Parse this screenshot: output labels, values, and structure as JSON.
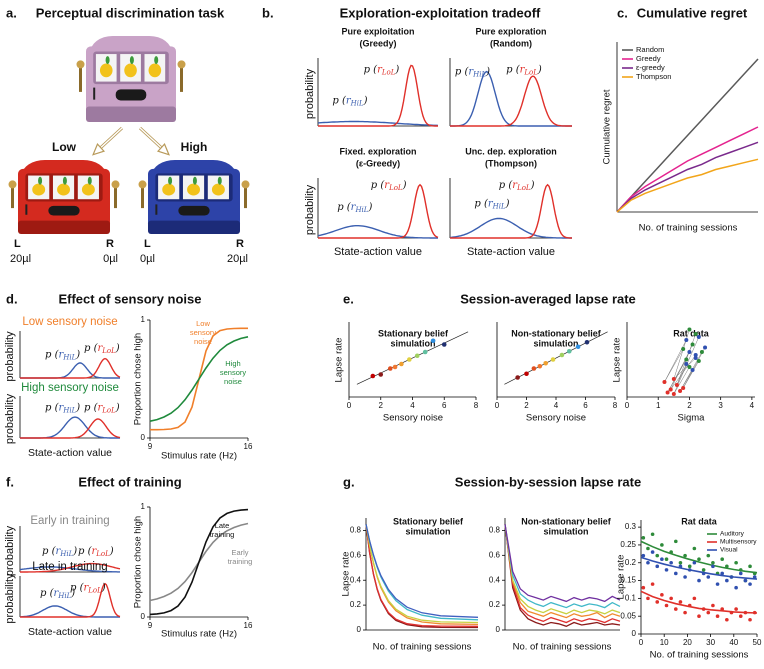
{
  "panels": {
    "a": {
      "label": "a.",
      "title": "Perceptual discrimination task",
      "machines": [
        {
          "name": "Low",
          "left": "L",
          "right": "R",
          "left_reward": "20µl",
          "right_reward": "0µl"
        },
        {
          "name": "High",
          "left": "L",
          "right": "R",
          "left_reward": "0µl",
          "right_reward": "20µl"
        }
      ]
    },
    "b": {
      "label": "b.",
      "title": "Exploration-exploitation tradeoff",
      "y_label": "probability",
      "x_label": "State-action value",
      "subplots": [
        [
          "Pure exploitation",
          "(Greedy)"
        ],
        [
          "Pure exploration",
          "(Random)"
        ],
        [
          "Fixed. exploration",
          "(ε-Greedy)"
        ],
        [
          "Unc. dep. exploration",
          "(Thompson)"
        ]
      ]
    },
    "c": {
      "label": "c."
    },
    "d": {
      "label": "d.",
      "title": "Effect of sensory noise",
      "conditions": [
        "Low sensory noise",
        "High sensory noise"
      ],
      "y_label": "probability",
      "x_label": "State-action value"
    },
    "e": {
      "label": "e.",
      "title": "Session-averaged lapse rate"
    },
    "f": {
      "label": "f.",
      "title": "Effect of training",
      "conditions": [
        "Early in training",
        "Late in training"
      ],
      "y_label": "probability",
      "x_label": "State-action value"
    },
    "g": {
      "label": "g.",
      "title": "Session-by-session lapse rate"
    }
  },
  "symbols": {
    "hil": {
      "open": "p (",
      "var": "r",
      "sub": "HiL",
      "close": ")"
    },
    "lol": {
      "open": "p (",
      "var": "r",
      "sub": "LoL",
      "close": ")"
    }
  },
  "chart_data": [
    {
      "type": "line",
      "title": "Cumulative regret",
      "x_label": "No. of training sessions",
      "y_label": "Cumulative regret",
      "x": [
        0,
        1,
        2,
        3,
        4,
        5,
        6,
        7,
        8,
        9,
        10
      ],
      "xlim": [
        0,
        10
      ],
      "ylim": [
        0,
        10
      ],
      "legend": "upper left",
      "series": [
        {
          "name": "Random",
          "color": "#5a5a5a",
          "values": [
            0,
            0.9,
            1.8,
            2.7,
            3.6,
            4.5,
            5.4,
            6.3,
            7.2,
            8.1,
            9
          ]
        },
        {
          "name": "Greedy",
          "color": "#e4238f",
          "values": [
            0,
            0.9,
            1.5,
            2,
            2.5,
            3,
            3.4,
            3.8,
            4.2,
            4.6,
            5
          ]
        },
        {
          "name": "ε-greedy",
          "color": "#7a2a8c",
          "values": [
            0,
            0.8,
            1.3,
            1.7,
            2.1,
            2.5,
            2.8,
            3.2,
            3.5,
            3.8,
            4.1
          ]
        },
        {
          "name": "Thompson",
          "color": "#f2a51a",
          "values": [
            0,
            0.7,
            1.1,
            1.4,
            1.7,
            2,
            2.2,
            2.5,
            2.7,
            2.9,
            3.1
          ]
        }
      ]
    },
    {
      "type": "line",
      "x_label": "Stimulus rate (Hz)",
      "y_label": "Proportion chose high",
      "x": [
        9,
        9.5,
        10,
        10.5,
        11,
        11.5,
        12,
        12.5,
        13,
        13.5,
        14,
        14.5,
        15,
        15.5,
        16
      ],
      "xlim": [
        9,
        16
      ],
      "ylim": [
        0,
        1
      ],
      "xticks": [
        9,
        16
      ],
      "yticks": [
        0,
        1
      ],
      "series": [
        {
          "label": [
            "Low",
            "sensory",
            "noise"
          ],
          "color": "#f07f2a",
          "values": [
            0.07,
            0.07,
            0.072,
            0.076,
            0.09,
            0.135,
            0.262,
            0.5,
            0.738,
            0.865,
            0.91,
            0.924,
            0.928,
            0.93,
            0.93
          ]
        },
        {
          "label": [
            "High",
            "sensory",
            "noise"
          ],
          "color": "#1f8a3c",
          "values": [
            0.142,
            0.156,
            0.178,
            0.21,
            0.258,
            0.324,
            0.407,
            0.5,
            0.593,
            0.676,
            0.742,
            0.79,
            0.822,
            0.844,
            0.858
          ]
        }
      ]
    },
    {
      "type": "scatter",
      "title": [
        "Stationary belief",
        "simulation"
      ],
      "x_label": "Sensory noise",
      "y_label": "Lapse rate",
      "xlim": [
        0,
        8
      ],
      "ylim": [
        0,
        1
      ],
      "xticks": [
        0,
        2,
        4,
        6,
        8
      ],
      "x": [
        1.5,
        2.0,
        2.6,
        2.9,
        3.3,
        3.8,
        4.3,
        4.8,
        5.3,
        6.0
      ],
      "values": [
        0.28,
        0.3,
        0.38,
        0.4,
        0.44,
        0.5,
        0.55,
        0.6,
        0.75,
        0.7
      ],
      "colors": [
        "#c00000",
        "#8b1a1a",
        "#e05020",
        "#f07830",
        "#f0a030",
        "#e0d040",
        "#a0d060",
        "#60c0a0",
        "#3090e0",
        "#203070"
      ],
      "fit": {
        "x": [
          0.5,
          7.5
        ],
        "values": [
          0.17,
          0.87
        ]
      }
    },
    {
      "type": "scatter",
      "title": [
        "Non-stationary belief",
        "simulation"
      ],
      "x_label": "Sensory noise",
      "xlim": [
        0,
        8
      ],
      "ylim": [
        0,
        1
      ],
      "xticks": [
        0,
        2,
        4,
        6,
        8
      ],
      "x": [
        1.4,
        2.0,
        2.5,
        2.9,
        3.3,
        3.8,
        4.4,
        4.9,
        5.5,
        6.1
      ],
      "values": [
        0.26,
        0.31,
        0.38,
        0.41,
        0.45,
        0.5,
        0.56,
        0.61,
        0.67,
        0.73
      ],
      "colors": [
        "#8b1a1a",
        "#c00000",
        "#e05020",
        "#f07830",
        "#f0a030",
        "#e0d040",
        "#a0d060",
        "#60c0a0",
        "#3090e0",
        "#203070"
      ],
      "fit": {
        "x": [
          0.5,
          7.5
        ],
        "values": [
          0.17,
          0.87
        ]
      }
    },
    {
      "type": "paired",
      "title": "Rat data",
      "x_label": "Sigma",
      "y_label": "Lapse rate",
      "xlim": [
        0,
        4.1
      ],
      "ylim": [
        0,
        0.5
      ],
      "xticks": [
        0,
        1,
        2,
        3,
        4
      ],
      "series": [
        {
          "color": "#e0302a",
          "x": [
            1.3,
            1.4,
            1.5,
            1.6,
            1.7,
            1.2,
            1.8,
            1.5
          ],
          "values": [
            0.03,
            0.05,
            0.02,
            0.08,
            0.04,
            0.1,
            0.06,
            0.12
          ]
        },
        {
          "color": "#2e8b3a",
          "x": [
            1.9,
            2.1,
            2.0,
            2.2,
            2.4,
            1.8,
            2.3,
            2.0
          ],
          "values": [
            0.25,
            0.35,
            0.2,
            0.42,
            0.3,
            0.32,
            0.24,
            0.45
          ]
        },
        {
          "color": "#3050b0",
          "x": [
            2.0,
            2.2,
            2.3,
            1.9,
            2.1,
            1.9,
            2.5,
            2.2
          ],
          "values": [
            0.3,
            0.28,
            0.4,
            0.22,
            0.18,
            0.38,
            0.33,
            0.26
          ]
        }
      ]
    },
    {
      "type": "line",
      "x_label": "Stimulus rate (Hz)",
      "y_label": "Proportion chose high",
      "x": [
        9,
        9.5,
        10,
        10.5,
        11,
        11.5,
        12,
        12.5,
        13,
        13.5,
        14,
        14.5,
        15,
        15.5,
        16
      ],
      "xlim": [
        9,
        16
      ],
      "ylim": [
        0,
        1
      ],
      "xticks": [
        9,
        16
      ],
      "yticks": [
        0,
        1
      ],
      "series": [
        {
          "label": [
            "Early",
            "training"
          ],
          "color": "#888888",
          "values": [
            0.15,
            0.165,
            0.186,
            0.216,
            0.26,
            0.322,
            0.404,
            0.5,
            0.596,
            0.678,
            0.74,
            0.784,
            0.814,
            0.835,
            0.85
          ]
        },
        {
          "label": [
            "Late",
            "training"
          ],
          "color": "#111111",
          "values": [
            0.024,
            0.028,
            0.037,
            0.058,
            0.1,
            0.181,
            0.317,
            0.5,
            0.683,
            0.819,
            0.9,
            0.942,
            0.963,
            0.972,
            0.976
          ]
        }
      ]
    },
    {
      "type": "line",
      "title": [
        "Stationary belief",
        "simulation"
      ],
      "x_label": "No. of training sessions",
      "y_label": "Lapse rate",
      "x": [
        0,
        1,
        2,
        3,
        4,
        6,
        8,
        11,
        15,
        20,
        30
      ],
      "xlim": [
        0,
        30
      ],
      "ylim": [
        0,
        0.9
      ],
      "yticks": [
        0,
        0.2,
        0.4,
        0.6,
        0.8
      ],
      "series": [
        {
          "color": "#8b1a1a",
          "values": [
            0.85,
            0.615,
            0.446,
            0.325,
            0.239,
            0.132,
            0.077,
            0.042,
            0.026,
            0.021,
            0.02
          ]
        },
        {
          "color": "#e03030",
          "values": [
            0.85,
            0.618,
            0.451,
            0.332,
            0.246,
            0.141,
            0.087,
            0.051,
            0.035,
            0.031,
            0.03
          ]
        },
        {
          "color": "#f08a30",
          "values": [
            0.85,
            0.672,
            0.534,
            0.425,
            0.341,
            0.225,
            0.154,
            0.097,
            0.064,
            0.05,
            0.045
          ]
        },
        {
          "color": "#c8d040",
          "values": [
            0.85,
            0.675,
            0.54,
            0.433,
            0.351,
            0.236,
            0.167,
            0.111,
            0.079,
            0.065,
            0.06
          ]
        },
        {
          "color": "#40b8c8",
          "values": [
            0.85,
            0.711,
            0.596,
            0.503,
            0.426,
            0.312,
            0.236,
            0.165,
            0.119,
            0.094,
            0.082
          ]
        },
        {
          "color": "#4060c0",
          "values": [
            0.85,
            0.714,
            0.603,
            0.512,
            0.437,
            0.326,
            0.252,
            0.183,
            0.138,
            0.114,
            0.102
          ]
        }
      ]
    },
    {
      "type": "line",
      "title": [
        "Non-stationary belief",
        "simulation"
      ],
      "x_label": "No. of training sessions",
      "x": [
        0,
        2,
        4,
        6,
        8,
        10,
        12,
        14,
        16,
        18,
        20,
        22,
        24,
        26,
        28,
        30
      ],
      "xlim": [
        0,
        30
      ],
      "ylim": [
        0,
        0.9
      ],
      "yticks": [
        0,
        0.2,
        0.4,
        0.6,
        0.8
      ],
      "series": [
        {
          "color": "#8b1a1a",
          "values": [
            0.85,
            0.34,
            0.16,
            0.09,
            0.06,
            0.04,
            0.06,
            0.05,
            0.03,
            0.06,
            0.04,
            0.05,
            0.06,
            0.04,
            0.05,
            0.04
          ]
        },
        {
          "color": "#e03030",
          "values": [
            0.85,
            0.37,
            0.18,
            0.12,
            0.09,
            0.07,
            0.1,
            0.08,
            0.06,
            0.09,
            0.07,
            0.09,
            0.08,
            0.06,
            0.09,
            0.07
          ]
        },
        {
          "color": "#f08a30",
          "values": [
            0.85,
            0.39,
            0.22,
            0.15,
            0.13,
            0.11,
            0.14,
            0.12,
            0.1,
            0.13,
            0.11,
            0.12,
            0.14,
            0.1,
            0.13,
            0.11
          ]
        },
        {
          "color": "#c8d040",
          "values": [
            0.85,
            0.4,
            0.25,
            0.19,
            0.16,
            0.14,
            0.17,
            0.15,
            0.13,
            0.16,
            0.14,
            0.16,
            0.15,
            0.13,
            0.16,
            0.14
          ]
        },
        {
          "color": "#40b8c8",
          "values": [
            0.85,
            0.44,
            0.29,
            0.24,
            0.21,
            0.19,
            0.22,
            0.2,
            0.18,
            0.21,
            0.19,
            0.21,
            0.2,
            0.18,
            0.22,
            0.19
          ]
        },
        {
          "color": "#7030a0",
          "values": [
            0.85,
            0.47,
            0.33,
            0.28,
            0.26,
            0.24,
            0.27,
            0.25,
            0.23,
            0.26,
            0.24,
            0.26,
            0.25,
            0.23,
            0.27,
            0.24
          ]
        }
      ]
    },
    {
      "type": "scatter_fit",
      "title": "Rat data",
      "x_label": "No. of training sessions",
      "y_label": "Lapse rate",
      "xlim": [
        0,
        50
      ],
      "ylim": [
        0,
        0.32
      ],
      "xticks": [
        0,
        10,
        20,
        30,
        40,
        50
      ],
      "yticks": [
        0,
        0.05,
        0.1,
        0.15,
        0.2,
        0.25,
        0.3
      ],
      "legend": "upper right",
      "x": [
        1,
        3,
        5,
        7,
        9,
        11,
        13,
        15,
        17,
        19,
        21,
        23,
        25,
        27,
        29,
        31,
        33,
        35,
        37,
        39,
        41,
        43,
        45,
        47,
        49
      ],
      "fit_x": [
        0,
        5,
        10,
        15,
        20,
        25,
        30,
        35,
        40,
        45,
        50
      ],
      "series": [
        {
          "name": "Auditory",
          "color": "#2e8b3a",
          "values": [
            0.27,
            0.24,
            0.28,
            0.22,
            0.25,
            0.21,
            0.23,
            0.26,
            0.2,
            0.22,
            0.19,
            0.24,
            0.21,
            0.18,
            0.22,
            0.2,
            0.17,
            0.21,
            0.19,
            0.16,
            0.2,
            0.18,
            0.15,
            0.19,
            0.17
          ],
          "fit_values": [
            0.26,
            0.245,
            0.232,
            0.221,
            0.211,
            0.202,
            0.194,
            0.187,
            0.181,
            0.176,
            0.172
          ]
        },
        {
          "name": "Multisensory",
          "color": "#e0302a",
          "values": [
            0.13,
            0.1,
            0.14,
            0.09,
            0.11,
            0.08,
            0.1,
            0.07,
            0.09,
            0.06,
            0.08,
            0.1,
            0.05,
            0.07,
            0.06,
            0.08,
            0.05,
            0.07,
            0.04,
            0.06,
            0.07,
            0.05,
            0.06,
            0.04,
            0.06
          ],
          "fit_values": [
            0.12,
            0.105,
            0.094,
            0.085,
            0.078,
            0.072,
            0.068,
            0.065,
            0.062,
            0.06,
            0.059
          ]
        },
        {
          "name": "Visual",
          "color": "#3050b0",
          "values": [
            0.22,
            0.2,
            0.23,
            0.19,
            0.21,
            0.18,
            0.2,
            0.17,
            0.19,
            0.16,
            0.18,
            0.2,
            0.15,
            0.17,
            0.16,
            0.19,
            0.14,
            0.17,
            0.15,
            0.16,
            0.13,
            0.17,
            0.15,
            0.14,
            0.16
          ],
          "fit_values": [
            0.215,
            0.205,
            0.196,
            0.188,
            0.181,
            0.175,
            0.169,
            0.164,
            0.16,
            0.157,
            0.154
          ]
        }
      ]
    }
  ]
}
